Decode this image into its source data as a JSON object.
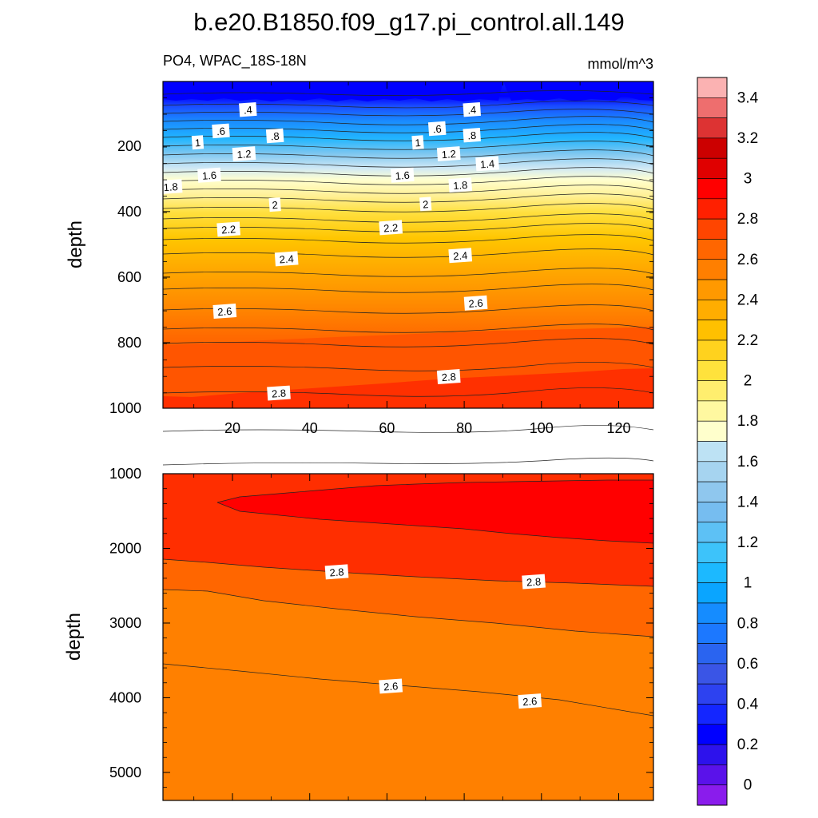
{
  "chart_data": {
    "type": "heatmap",
    "title": "b.e20.B1850.f09_g17.pi_control.all.149",
    "subtitle_left": "PO4, WPAC_18S-18N",
    "subtitle_right": "mmol/m^3",
    "x_tick_labels": [
      "20",
      "40",
      "60",
      "80",
      "100",
      "120"
    ],
    "panels": [
      {
        "ylabel": "depth",
        "y_tick_labels": [
          "200",
          "400",
          "600",
          "800",
          "1000"
        ],
        "contour_labels": [
          {
            "text": ".4",
            "x": 24,
            "y": 90
          },
          {
            "text": ".4",
            "x": 82,
            "y": 90
          },
          {
            "text": ".6",
            "x": 17,
            "y": 155
          },
          {
            "text": ".6",
            "x": 73,
            "y": 148
          },
          {
            "text": ".8",
            "x": 31,
            "y": 170
          },
          {
            "text": ".8",
            "x": 82,
            "y": 168
          },
          {
            "text": "1",
            "x": 11,
            "y": 190
          },
          {
            "text": "1",
            "x": 68,
            "y": 190
          },
          {
            "text": "1.2",
            "x": 23,
            "y": 225
          },
          {
            "text": "1.2",
            "x": 76,
            "y": 225
          },
          {
            "text": "1.4",
            "x": 86,
            "y": 255
          },
          {
            "text": "1.6",
            "x": 14,
            "y": 290
          },
          {
            "text": "1.6",
            "x": 64,
            "y": 290
          },
          {
            "text": "1.8",
            "x": 4,
            "y": 325
          },
          {
            "text": "1.8",
            "x": 79,
            "y": 320
          },
          {
            "text": "2",
            "x": 31,
            "y": 380
          },
          {
            "text": "2",
            "x": 70,
            "y": 378
          },
          {
            "text": "2.2",
            "x": 19,
            "y": 455
          },
          {
            "text": "2.2",
            "x": 61,
            "y": 450
          },
          {
            "text": "2.4",
            "x": 34,
            "y": 545
          },
          {
            "text": "2.4",
            "x": 79,
            "y": 535
          },
          {
            "text": "2.6",
            "x": 18,
            "y": 705
          },
          {
            "text": "2.6",
            "x": 83,
            "y": 680
          },
          {
            "text": "2.8",
            "x": 32,
            "y": 955
          },
          {
            "text": "2.8",
            "x": 76,
            "y": 905
          }
        ]
      },
      {
        "ylabel": "depth",
        "y_tick_labels": [
          "1000",
          "2000",
          "3000",
          "4000",
          "5000"
        ],
        "contour_labels": [
          {
            "text": "2.8",
            "x": 47,
            "y": 2320
          },
          {
            "text": "2.8",
            "x": 98,
            "y": 2450
          },
          {
            "text": "2.6",
            "x": 61,
            "y": 3850
          },
          {
            "text": "2.6",
            "x": 97,
            "y": 4050
          }
        ]
      }
    ],
    "colorbar_labels": [
      "3.4",
      "3.2",
      "3",
      "2.8",
      "2.6",
      "2.4",
      "2.2",
      "2",
      "1.8",
      "1.6",
      "1.4",
      "1.2",
      "1",
      "0.8",
      "0.6",
      "0.4",
      "0.2",
      "0"
    ],
    "colors_top_to_bottom": [
      "#fbb2b2",
      "#ee6e6e",
      "#dd3333",
      "#cc0000",
      "#e00000",
      "#ff0000",
      "#ff2000",
      "#ff4500",
      "#ff6600",
      "#ff7f00",
      "#ff9900",
      "#ffad00",
      "#ffc000",
      "#ffd21e",
      "#ffe23c",
      "#ffee6e",
      "#fff8a0",
      "#ffffcc",
      "#bde2f4",
      "#a6d4f0",
      "#8fc7ee",
      "#76bdf0",
      "#5dc1f5",
      "#3dc3fa",
      "#1cb9ff",
      "#0aa5ff",
      "#158cff",
      "#1c78ff",
      "#2a64f0",
      "#3a55e6",
      "#2d42f0",
      "#1426ff",
      "#0000ff",
      "#2d12ec",
      "#5a12ea",
      "#8a1cec"
    ]
  }
}
